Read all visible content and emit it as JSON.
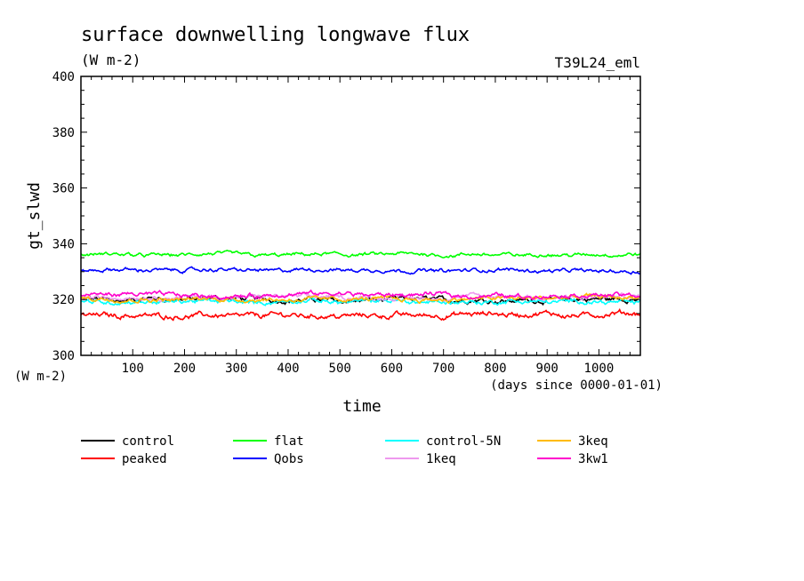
{
  "chart_data": {
    "type": "line",
    "title": "surface downwelling longwave flux",
    "subtitle": "(W m-2)",
    "run_label": "T39L24_eml",
    "ylabel": "gt_slwd",
    "y_unit_label": "(W m-2)",
    "xlabel": "time",
    "x_unit_label": "(days since 0000-01-01)",
    "xlim": [
      0,
      1080
    ],
    "ylim": [
      300,
      400
    ],
    "x_ticks": [
      100,
      200,
      300,
      400,
      500,
      600,
      700,
      800,
      900,
      1000
    ],
    "y_ticks": [
      300,
      320,
      340,
      360,
      380,
      400
    ],
    "grid": false,
    "legend_position": "bottom",
    "series": [
      {
        "name": "control",
        "color": "#000000",
        "mean": 320.0,
        "noise": 1.2,
        "values_range": [
          317,
          323
        ]
      },
      {
        "name": "peaked",
        "color": "#ff0000",
        "mean": 314.5,
        "noise": 1.3,
        "values_range": [
          311,
          318
        ]
      },
      {
        "name": "flat",
        "color": "#00ff00",
        "mean": 336.0,
        "noise": 0.9,
        "values_range": [
          333,
          339
        ]
      },
      {
        "name": "Qobs",
        "color": "#0000ff",
        "mean": 330.5,
        "noise": 0.9,
        "values_range": [
          328,
          334
        ]
      },
      {
        "name": "control-5N",
        "color": "#00ffff",
        "mean": 319.2,
        "noise": 1.1,
        "values_range": [
          316,
          322
        ]
      },
      {
        "name": "1keq",
        "color": "#ee99ee",
        "mean": 320.8,
        "noise": 1.1,
        "values_range": [
          318,
          324
        ]
      },
      {
        "name": "3keq",
        "color": "#ffbb00",
        "mean": 320.5,
        "noise": 1.1,
        "values_range": [
          317,
          323
        ]
      },
      {
        "name": "3kw1",
        "color": "#ff00cc",
        "mean": 321.5,
        "noise": 1.1,
        "values_range": [
          318,
          325
        ]
      }
    ]
  }
}
